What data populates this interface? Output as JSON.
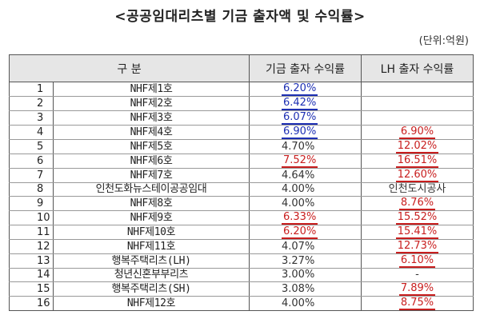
{
  "title": "<공공임대리츠별 기금 출자액 및 수익률>",
  "unit": "(단위:억원)",
  "headers": {
    "category": "구 분",
    "fund_return": "기금 출자 수익률",
    "lh_return": "LH 출자 수익률"
  },
  "rows": [
    {
      "no": "1",
      "name": "NHF제1호",
      "fund": "6.20%",
      "fund_style": "blue",
      "lh": "",
      "lh_style": "plain"
    },
    {
      "no": "2",
      "name": "NHF제2호",
      "fund": "6.42%",
      "fund_style": "blue",
      "lh": "",
      "lh_style": "plain"
    },
    {
      "no": "3",
      "name": "NHF제3호",
      "fund": "6.07%",
      "fund_style": "blue",
      "lh": "",
      "lh_style": "plain"
    },
    {
      "no": "4",
      "name": "NHF제4호",
      "fund": "6.90%",
      "fund_style": "blue",
      "lh": "6.90%",
      "lh_style": "red"
    },
    {
      "no": "5",
      "name": "NHF제5호",
      "fund": "4.70%",
      "fund_style": "plain",
      "lh": "12.02%",
      "lh_style": "red"
    },
    {
      "no": "6",
      "name": "NHF제6호",
      "fund": "7.52%",
      "fund_style": "red",
      "lh": "16.51%",
      "lh_style": "red"
    },
    {
      "no": "7",
      "name": "NHF제7호",
      "fund": "4.64%",
      "fund_style": "plain",
      "lh": "12.60%",
      "lh_style": "red"
    },
    {
      "no": "8",
      "name": "인천도화뉴스테이공공임대",
      "fund": "4.00%",
      "fund_style": "plain",
      "lh": "인천도시공사",
      "lh_style": "plain"
    },
    {
      "no": "9",
      "name": "NHF제8호",
      "fund": "4.00%",
      "fund_style": "plain",
      "lh": "8.76%",
      "lh_style": "red"
    },
    {
      "no": "10",
      "name": "NHF제9호",
      "fund": "6.33%",
      "fund_style": "red",
      "lh": "15.52%",
      "lh_style": "red"
    },
    {
      "no": "11",
      "name": "NHF제10호",
      "fund": "6.20%",
      "fund_style": "red",
      "lh": "15.41%",
      "lh_style": "red"
    },
    {
      "no": "12",
      "name": "NHF제11호",
      "fund": "4.07%",
      "fund_style": "plain",
      "lh": "12.73%",
      "lh_style": "red"
    },
    {
      "no": "13",
      "name": "행복주택리츠(LH)",
      "fund": "3.27%",
      "fund_style": "plain",
      "lh": "6.10%",
      "lh_style": "red"
    },
    {
      "no": "14",
      "name": "청년신혼부부리츠",
      "fund": "3.00%",
      "fund_style": "plain",
      "lh": "-",
      "lh_style": "plain"
    },
    {
      "no": "15",
      "name": "행복주택리츠(SH)",
      "fund": "3.08%",
      "fund_style": "plain",
      "lh": "7.89%",
      "lh_style": "red"
    },
    {
      "no": "16",
      "name": "NHF제12호",
      "fund": "4.00%",
      "fund_style": "plain",
      "lh": "8.75%",
      "lh_style": "red"
    }
  ],
  "colors": {
    "header_bg": "#e6e6e6",
    "highlight_blue": "#1d2fb3",
    "highlight_red": "#c81e1e"
  }
}
